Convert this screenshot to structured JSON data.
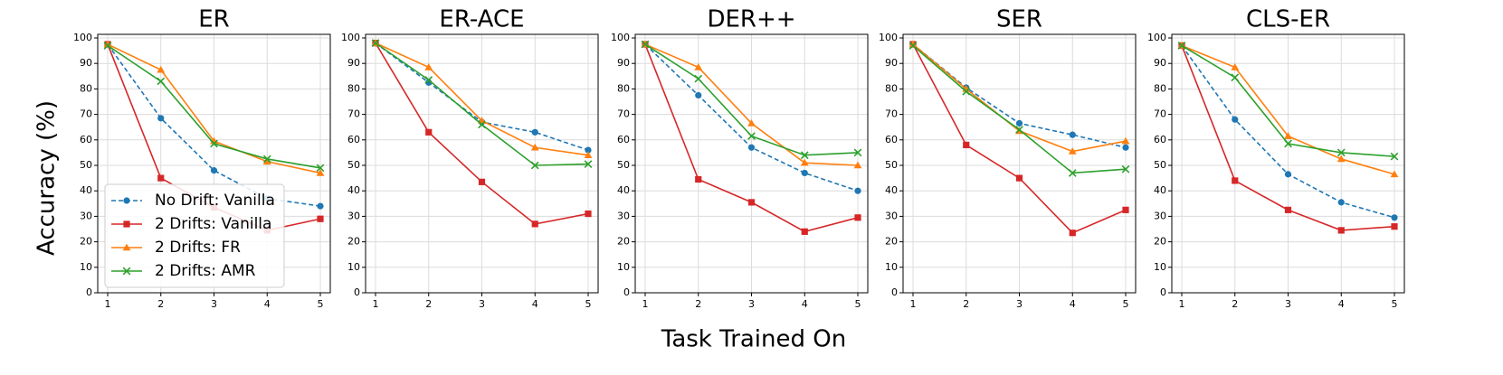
{
  "ylabel": "Accuracy (%)",
  "xlabel": "Task Trained On",
  "legend_position": "lower-left of first panel",
  "series_styles": [
    {
      "name": "No Drift: Vanilla",
      "color": "#1f77b4",
      "marker": "circle",
      "dash": "dashed"
    },
    {
      "name": "2 Drifts: Vanilla",
      "color": "#d62728",
      "marker": "square",
      "dash": "solid"
    },
    {
      "name": "2 Drifts: FR",
      "color": "#ff7f0e",
      "marker": "triangle",
      "dash": "solid"
    },
    {
      "name": "2 Drifts: AMR",
      "color": "#2ca02c",
      "marker": "x",
      "dash": "solid"
    }
  ],
  "chart_data": [
    {
      "type": "line",
      "title": "ER",
      "x": [
        1,
        2,
        3,
        4,
        5
      ],
      "xlim": [
        1,
        5
      ],
      "ylim": [
        0,
        100
      ],
      "yticks": [
        0,
        10,
        20,
        30,
        40,
        50,
        60,
        70,
        80,
        90,
        100
      ],
      "grid": true,
      "series": [
        {
          "name": "No Drift: Vanilla",
          "values": [
            97.5,
            68.5,
            48,
            37,
            34
          ]
        },
        {
          "name": "2 Drifts: Vanilla",
          "values": [
            97.5,
            45,
            33.5,
            24.5,
            29
          ]
        },
        {
          "name": "2 Drifts: FR",
          "values": [
            97.5,
            87.5,
            59.5,
            51.5,
            47
          ]
        },
        {
          "name": "2 Drifts: AMR",
          "values": [
            97,
            83,
            58.5,
            52.5,
            49
          ]
        }
      ]
    },
    {
      "type": "line",
      "title": "ER-ACE",
      "x": [
        1,
        2,
        3,
        4,
        5
      ],
      "xlim": [
        1,
        5
      ],
      "ylim": [
        0,
        100
      ],
      "yticks": [
        0,
        10,
        20,
        30,
        40,
        50,
        60,
        70,
        80,
        90,
        100
      ],
      "grid": true,
      "series": [
        {
          "name": "No Drift: Vanilla",
          "values": [
            98,
            82.5,
            67,
            63,
            56
          ]
        },
        {
          "name": "2 Drifts: Vanilla",
          "values": [
            98,
            63,
            43.5,
            27,
            31
          ]
        },
        {
          "name": "2 Drifts: FR",
          "values": [
            98,
            88.5,
            67.5,
            57,
            54
          ]
        },
        {
          "name": "2 Drifts: AMR",
          "values": [
            98,
            83.5,
            66,
            50,
            50.5
          ]
        }
      ]
    },
    {
      "type": "line",
      "title": "DER++",
      "x": [
        1,
        2,
        3,
        4,
        5
      ],
      "xlim": [
        1,
        5
      ],
      "ylim": [
        0,
        100
      ],
      "yticks": [
        0,
        10,
        20,
        30,
        40,
        50,
        60,
        70,
        80,
        90,
        100
      ],
      "grid": true,
      "series": [
        {
          "name": "No Drift: Vanilla",
          "values": [
            97.5,
            77.5,
            57,
            47,
            40
          ]
        },
        {
          "name": "2 Drifts: Vanilla",
          "values": [
            97.5,
            44.5,
            35.5,
            24,
            29.5
          ]
        },
        {
          "name": "2 Drifts: FR",
          "values": [
            97.5,
            88.5,
            66.5,
            51,
            50
          ]
        },
        {
          "name": "2 Drifts: AMR",
          "values": [
            97.5,
            84,
            61.5,
            54,
            55
          ]
        }
      ]
    },
    {
      "type": "line",
      "title": "SER",
      "x": [
        1,
        2,
        3,
        4,
        5
      ],
      "xlim": [
        1,
        5
      ],
      "ylim": [
        0,
        100
      ],
      "yticks": [
        0,
        10,
        20,
        30,
        40,
        50,
        60,
        70,
        80,
        90,
        100
      ],
      "grid": true,
      "series": [
        {
          "name": "No Drift: Vanilla",
          "values": [
            97.5,
            80.5,
            66.5,
            62,
            57
          ]
        },
        {
          "name": "2 Drifts: Vanilla",
          "values": [
            97.5,
            58,
            45,
            23.5,
            32.5
          ]
        },
        {
          "name": "2 Drifts: FR",
          "values": [
            97.5,
            80,
            63.5,
            55.5,
            59.5
          ]
        },
        {
          "name": "2 Drifts: AMR",
          "values": [
            97,
            79,
            64,
            47,
            48.5
          ]
        }
      ]
    },
    {
      "type": "line",
      "title": "CLS-ER",
      "x": [
        1,
        2,
        3,
        4,
        5
      ],
      "xlim": [
        1,
        5
      ],
      "ylim": [
        0,
        100
      ],
      "yticks": [
        0,
        10,
        20,
        30,
        40,
        50,
        60,
        70,
        80,
        90,
        100
      ],
      "grid": true,
      "series": [
        {
          "name": "No Drift: Vanilla",
          "values": [
            97,
            68,
            46.5,
            35.5,
            29.5
          ]
        },
        {
          "name": "2 Drifts: Vanilla",
          "values": [
            97,
            44,
            32.5,
            24.5,
            26
          ]
        },
        {
          "name": "2 Drifts: FR",
          "values": [
            97,
            88.5,
            61.5,
            52.5,
            46.5
          ]
        },
        {
          "name": "2 Drifts: AMR",
          "values": [
            97,
            84.5,
            58.5,
            55,
            53.5
          ]
        }
      ]
    }
  ]
}
